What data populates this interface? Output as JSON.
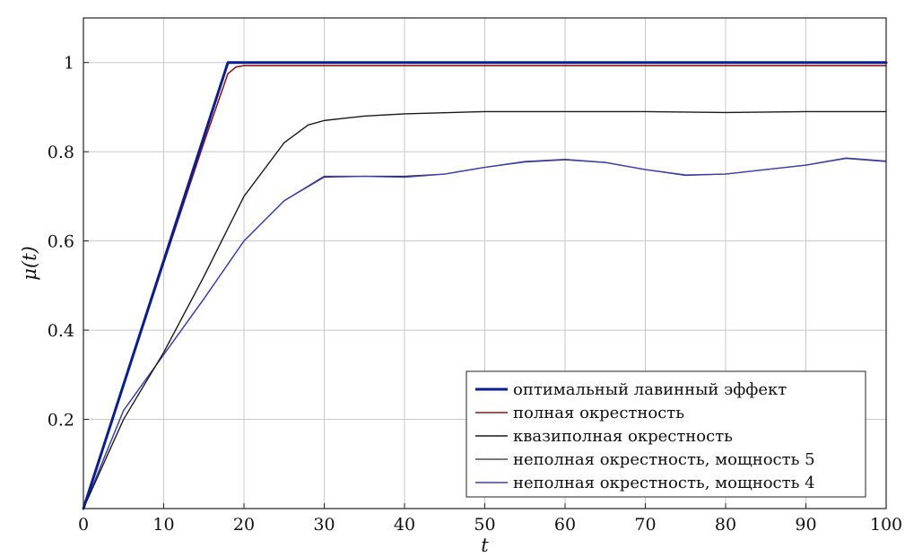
{
  "chart_data": {
    "type": "line",
    "xlabel": "t",
    "ylabel": "μ(t)",
    "xlim": [
      0,
      100
    ],
    "ylim": [
      0,
      1.1
    ],
    "xticks": [
      "0",
      "10",
      "20",
      "30",
      "40",
      "50",
      "60",
      "70",
      "80",
      "90",
      "100"
    ],
    "yticks": [
      "0.2",
      "0.4",
      "0.6",
      "0.8",
      "1"
    ],
    "grid": true,
    "legend_position": "bottom-right",
    "series": [
      {
        "name": "оптимальный лавинный эффект",
        "color": "#0a1f8f",
        "width": 3,
        "x": [
          0,
          18,
          100
        ],
        "y": [
          0,
          1.0,
          1.0
        ]
      },
      {
        "name": "полная окрестность",
        "color": "#8b1a1a",
        "width": 1.6,
        "x": [
          0,
          5,
          10,
          15,
          18,
          19,
          20,
          30,
          40,
          50,
          60,
          70,
          80,
          90,
          100
        ],
        "y": [
          0,
          0.275,
          0.55,
          0.82,
          0.975,
          0.99,
          0.993,
          0.993,
          0.993,
          0.993,
          0.993,
          0.993,
          0.993,
          0.993,
          0.993
        ]
      },
      {
        "name": "квазиполная окрестность",
        "color": "#1a1a1a",
        "width": 1.4,
        "x": [
          0,
          5,
          10,
          15,
          20,
          25,
          28,
          30,
          35,
          40,
          50,
          60,
          70,
          80,
          90,
          100
        ],
        "y": [
          0,
          0.2,
          0.35,
          0.52,
          0.7,
          0.82,
          0.86,
          0.87,
          0.88,
          0.885,
          0.89,
          0.89,
          0.89,
          0.888,
          0.89,
          0.89
        ]
      },
      {
        "name": "неполная окрестность, мощность 5",
        "color": "#2a2a2a",
        "width": 1.2,
        "x": [
          0,
          5,
          10,
          15,
          20,
          25,
          30,
          35,
          40,
          45,
          50,
          55,
          60,
          65,
          70,
          75,
          80,
          85,
          90,
          95,
          100
        ],
        "y": [
          0,
          0.22,
          0.345,
          0.47,
          0.6,
          0.69,
          0.743,
          0.745,
          0.745,
          0.75,
          0.765,
          0.777,
          0.782,
          0.776,
          0.76,
          0.747,
          0.75,
          0.76,
          0.77,
          0.785,
          0.778
        ]
      },
      {
        "name": "неполная окрестность, мощность 4",
        "color": "#3a3fb0",
        "width": 1.4,
        "x": [
          0,
          5,
          10,
          15,
          20,
          25,
          30,
          35,
          40,
          45,
          50,
          55,
          60,
          65,
          70,
          75,
          80,
          85,
          90,
          95,
          100
        ],
        "y": [
          0,
          0.22,
          0.345,
          0.47,
          0.6,
          0.69,
          0.745,
          0.745,
          0.743,
          0.75,
          0.765,
          0.778,
          0.783,
          0.776,
          0.76,
          0.748,
          0.75,
          0.76,
          0.77,
          0.786,
          0.779
        ]
      }
    ]
  }
}
